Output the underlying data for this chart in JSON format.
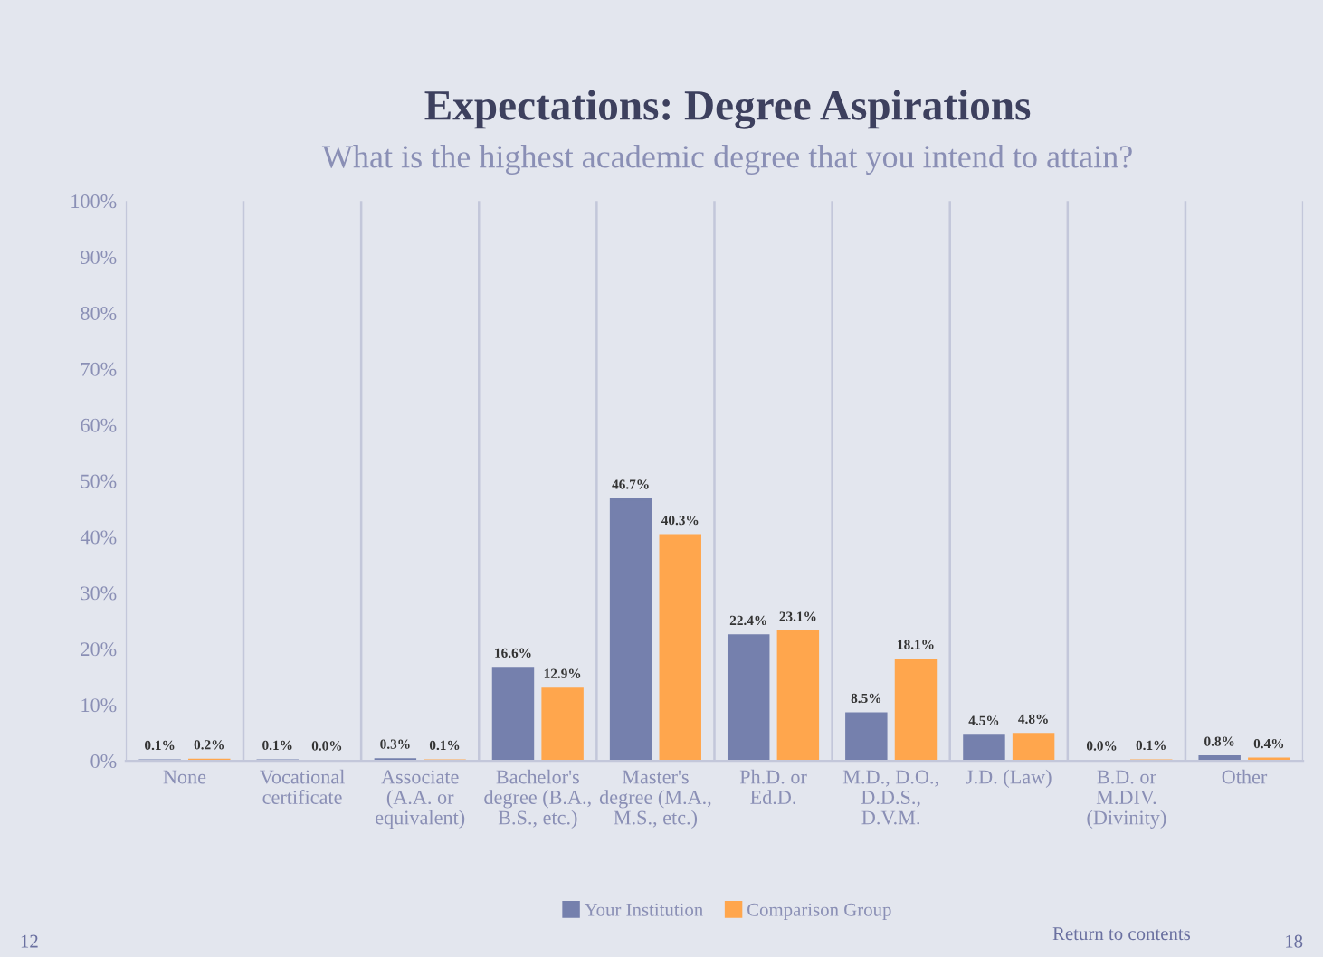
{
  "chart_data": {
    "type": "bar",
    "title": "Expectations: Degree Aspirations",
    "subtitle": "What is the highest academic degree that you intend to attain?",
    "categories": [
      "None",
      "Vocational certificate",
      "Associate (A.A. or equivalent)",
      "Bachelor's degree (B.A., B.S., etc.)",
      "Master's degree (M.A., M.S., etc.)",
      "Ph.D. or Ed.D.",
      "M.D., D.O., D.D.S., D.V.M.",
      "J.D. (Law)",
      "B.D. or M.DIV. (Divinity)",
      "Other"
    ],
    "series": [
      {
        "name": "Your Institution",
        "color": "#7580ad",
        "values": [
          0.1,
          0.1,
          0.3,
          16.6,
          46.7,
          22.4,
          8.5,
          4.5,
          0.0,
          0.8
        ],
        "value_labels": [
          "0.1%",
          "0.1%",
          "0.3%",
          "16.6%",
          "46.7%",
          "22.4%",
          "8.5%",
          "4.5%",
          "0.0%",
          "0.8%"
        ]
      },
      {
        "name": "Comparison Group",
        "color": "#ffa64d",
        "values": [
          0.2,
          0.0,
          0.1,
          12.9,
          40.3,
          23.1,
          18.1,
          4.8,
          0.1,
          0.4
        ],
        "value_labels": [
          "0.2%",
          "0.0%",
          "0.1%",
          "12.9%",
          "40.3%",
          "23.1%",
          "18.1%",
          "4.8%",
          "0.1%",
          "0.4%"
        ]
      }
    ],
    "ylim": [
      0,
      100
    ],
    "yticks": [
      {
        "value": 0,
        "label": "0%"
      },
      {
        "value": 10,
        "label": "10%"
      },
      {
        "value": 20,
        "label": "20%"
      },
      {
        "value": 30,
        "label": "30%"
      },
      {
        "value": 40,
        "label": "40%"
      },
      {
        "value": 50,
        "label": "50%"
      },
      {
        "value": 60,
        "label": "60%"
      },
      {
        "value": 70,
        "label": "70%"
      },
      {
        "value": 80,
        "label": "80%"
      },
      {
        "value": 90,
        "label": "90%"
      },
      {
        "value": 100,
        "label": "100%"
      }
    ],
    "grid": "x",
    "legend": "bottom",
    "annotations": [
      "12",
      "Return to contents",
      "18"
    ]
  }
}
